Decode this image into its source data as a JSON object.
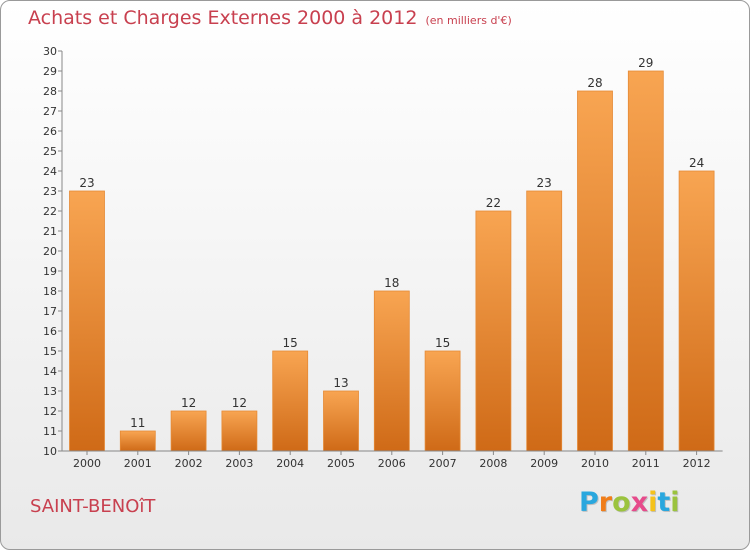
{
  "chart_data": {
    "type": "bar",
    "title": "Achats et Charges Externes 2000 à 2012",
    "subtitle": "(en milliers d'€)",
    "categories": [
      "2000",
      "2001",
      "2002",
      "2003",
      "2004",
      "2005",
      "2006",
      "2007",
      "2008",
      "2009",
      "2010",
      "2011",
      "2012"
    ],
    "values": [
      23,
      11,
      12,
      12,
      15,
      13,
      18,
      15,
      22,
      23,
      28,
      29,
      24
    ],
    "ylim": [
      10,
      30
    ],
    "yticks": [
      10,
      11,
      12,
      13,
      14,
      15,
      16,
      17,
      18,
      19,
      20,
      21,
      22,
      23,
      24,
      25,
      26,
      27,
      28,
      29,
      30
    ],
    "grid": false,
    "colors": {
      "bar_top": "#f8a552",
      "bar_bottom": "#cf6a17",
      "title": "#c8404f"
    }
  },
  "footer": {
    "city": "SAINT-BENOîT",
    "logo": {
      "letters": [
        "P",
        "r",
        "o",
        "x",
        "i",
        "t",
        "i"
      ],
      "colors": [
        "#29a7de",
        "#f07d19",
        "#9bc33e",
        "#e64b8b",
        "#f5c21b",
        "#29a7de",
        "#9bc33e"
      ]
    }
  }
}
